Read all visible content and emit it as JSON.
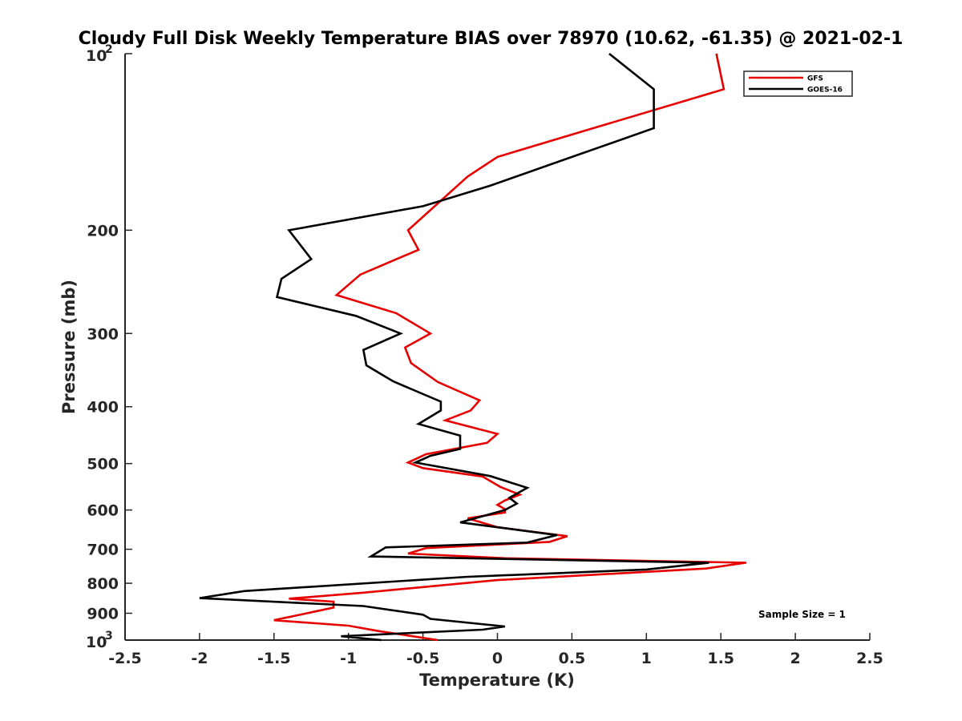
{
  "chart_data": {
    "type": "line",
    "title": "Cloudy Full Disk Weekly Temperature BIAS over 78970 (10.62, -61.35) @ 2021-02-1",
    "xlabel": "Temperature (K)",
    "ylabel": "Pressure (mb)",
    "xlim": [
      -2.5,
      2.5
    ],
    "ylim": [
      100,
      1000
    ],
    "y_scale": "log",
    "y_reversed": true,
    "x_ticks": [
      "-2.5",
      "-2",
      "-1.5",
      "-1",
      "-0.5",
      "0",
      "0.5",
      "1",
      "1.5",
      "2",
      "2.5"
    ],
    "y_ticks": [
      {
        "value": 100,
        "base": "10",
        "exp": "2"
      },
      {
        "value": 200,
        "label": "200"
      },
      {
        "value": 300,
        "label": "300"
      },
      {
        "value": 400,
        "label": "400"
      },
      {
        "value": 500,
        "label": "500"
      },
      {
        "value": 600,
        "label": "600"
      },
      {
        "value": 700,
        "label": "700"
      },
      {
        "value": 800,
        "label": "800"
      },
      {
        "value": 900,
        "label": "900"
      },
      {
        "value": 1000,
        "base": "10",
        "exp": "3"
      }
    ],
    "grid": false,
    "legend_position": "top-right",
    "annotation": "Sample Size = 1",
    "series": [
      {
        "name": "GFS",
        "color": "#e60000",
        "points": [
          [
            1.47,
            100
          ],
          [
            1.52,
            115
          ],
          [
            0.6,
            135
          ],
          [
            0.0,
            150
          ],
          [
            -0.2,
            162
          ],
          [
            -0.6,
            200
          ],
          [
            -0.53,
            216
          ],
          [
            -0.92,
            238
          ],
          [
            -1.08,
            258
          ],
          [
            -0.68,
            277
          ],
          [
            -0.45,
            300
          ],
          [
            -0.62,
            317
          ],
          [
            -0.58,
            337
          ],
          [
            -0.4,
            363
          ],
          [
            -0.12,
            390
          ],
          [
            -0.18,
            406
          ],
          [
            -0.35,
            422
          ],
          [
            0.0,
            445
          ],
          [
            -0.07,
            461
          ],
          [
            -0.48,
            482
          ],
          [
            -0.6,
            498
          ],
          [
            -0.5,
            509
          ],
          [
            -0.1,
            526
          ],
          [
            0.02,
            548
          ],
          [
            0.15,
            565
          ],
          [
            0.05,
            578
          ],
          [
            0.0,
            588
          ],
          [
            0.05,
            598
          ],
          [
            0.05,
            606
          ],
          [
            -0.2,
            620
          ],
          [
            0.0,
            642
          ],
          [
            0.47,
            665
          ],
          [
            0.35,
            680
          ],
          [
            -0.48,
            697
          ],
          [
            -0.6,
            712
          ],
          [
            0.05,
            725
          ],
          [
            1.67,
            738
          ],
          [
            1.4,
            755
          ],
          [
            0.0,
            790
          ],
          [
            -0.9,
            830
          ],
          [
            -1.4,
            850
          ],
          [
            -1.1,
            860
          ],
          [
            -1.1,
            880
          ],
          [
            -1.5,
            925
          ],
          [
            -1.0,
            945
          ],
          [
            -0.8,
            965
          ],
          [
            -0.4,
            1000
          ]
        ]
      },
      {
        "name": "GOES-16",
        "color": "#000000",
        "points": [
          [
            0.75,
            100
          ],
          [
            1.05,
            115
          ],
          [
            1.05,
            134
          ],
          [
            0.5,
            150
          ],
          [
            -0.05,
            168
          ],
          [
            -0.5,
            182
          ],
          [
            -1.4,
            200
          ],
          [
            -1.25,
            224
          ],
          [
            -1.45,
            242
          ],
          [
            -1.48,
            260
          ],
          [
            -0.95,
            280
          ],
          [
            -0.65,
            300
          ],
          [
            -0.9,
            320
          ],
          [
            -0.88,
            340
          ],
          [
            -0.7,
            362
          ],
          [
            -0.38,
            392
          ],
          [
            -0.38,
            406
          ],
          [
            -0.53,
            428
          ],
          [
            -0.25,
            448
          ],
          [
            -0.25,
            472
          ],
          [
            -0.45,
            485
          ],
          [
            -0.55,
            498
          ],
          [
            -0.05,
            525
          ],
          [
            0.2,
            550
          ],
          [
            0.08,
            572
          ],
          [
            0.13,
            585
          ],
          [
            0.05,
            600
          ],
          [
            -0.25,
            630
          ],
          [
            0.4,
            662
          ],
          [
            0.2,
            682
          ],
          [
            -0.75,
            695
          ],
          [
            -0.85,
            720
          ],
          [
            1.42,
            738
          ],
          [
            1.0,
            758
          ],
          [
            -0.2,
            780
          ],
          [
            -1.7,
            825
          ],
          [
            -2.0,
            848
          ],
          [
            -0.9,
            875
          ],
          [
            -0.5,
            905
          ],
          [
            -0.45,
            920
          ],
          [
            0.05,
            948
          ],
          [
            -0.1,
            960
          ],
          [
            -1.05,
            985
          ],
          [
            -0.78,
            1000
          ]
        ]
      }
    ]
  }
}
